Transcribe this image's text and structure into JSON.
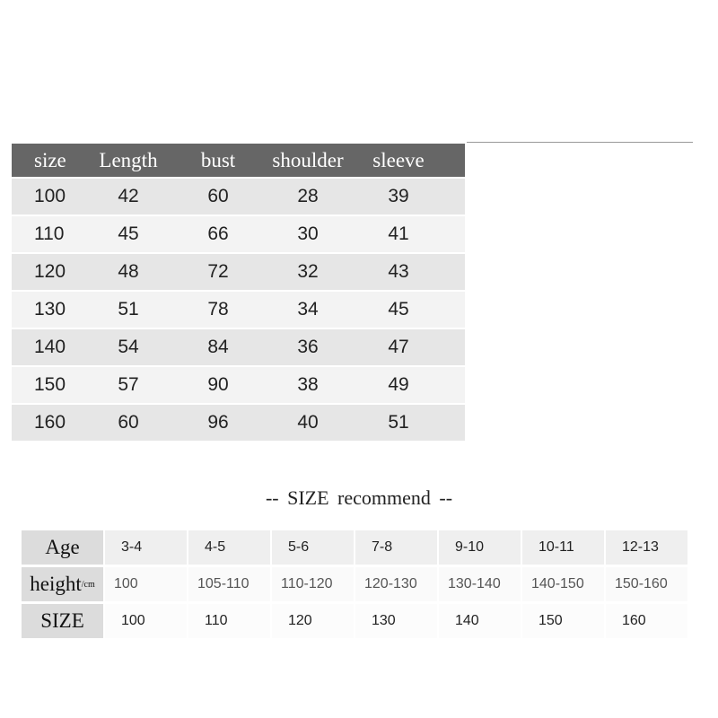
{
  "size_chart": {
    "headers": [
      "size",
      "Length",
      "bust",
      "shoulder",
      "sleeve"
    ],
    "rows": [
      [
        "100",
        "42",
        "60",
        "28",
        "39"
      ],
      [
        "110",
        "45",
        "66",
        "30",
        "41"
      ],
      [
        "120",
        "48",
        "72",
        "32",
        "43"
      ],
      [
        "130",
        "51",
        "78",
        "34",
        "45"
      ],
      [
        "140",
        "54",
        "84",
        "36",
        "47"
      ],
      [
        "150",
        "57",
        "90",
        "38",
        "49"
      ],
      [
        "160",
        "60",
        "96",
        "40",
        "51"
      ]
    ]
  },
  "recommend": {
    "title": "--  SIZE  recommend  --",
    "labels": [
      "Age",
      "height",
      "SIZE"
    ],
    "height_unit": "/cm",
    "age": [
      "3-4",
      "4-5",
      "5-6",
      "7-8",
      "9-10",
      "10-11",
      "12-13"
    ],
    "height": [
      "100",
      "105-110",
      "110-120",
      "120-130",
      "130-140",
      "140-150",
      "150-160"
    ],
    "size": [
      "100",
      "110",
      "120",
      "130",
      "140",
      "150",
      "160"
    ]
  }
}
